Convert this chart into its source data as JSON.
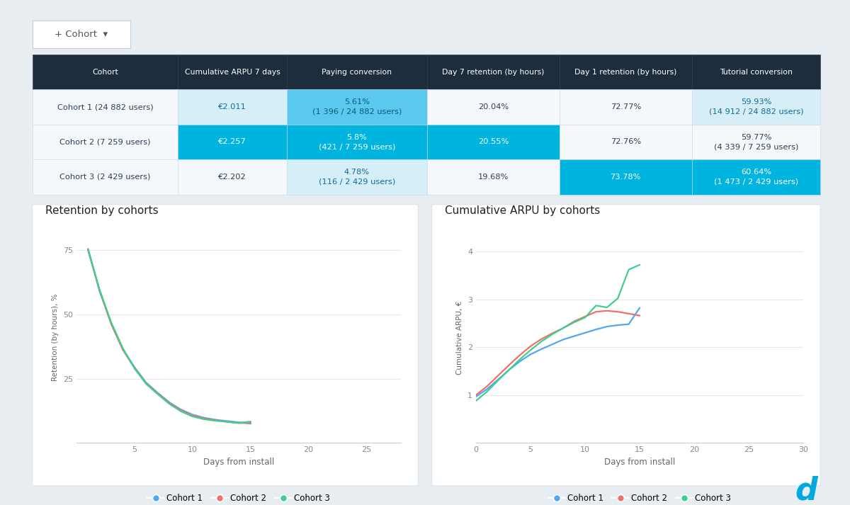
{
  "bg_color": "#e8edf2",
  "panel_color": "#ffffff",
  "header_color": "#1e2d3d",
  "header_text_color": "#ffffff",
  "table_headers": [
    "Cohort",
    "Cumulative ARPU 7 days",
    "Paying conversion",
    "Day 7 retention (by hours)",
    "Day 1 retention (by hours)",
    "Tutorial conversion"
  ],
  "rows": [
    {
      "cohort": "Cohort 1 (24 882 users)",
      "arpu": "€2.011",
      "paying": "5.61%\n(1 396 / 24 882 users)",
      "day7ret": "20.04%",
      "day1ret": "72.77%",
      "tutorial": "59.93%\n(14 912 / 24 882 users)",
      "cell_colors": [
        "#f5f8fa",
        "#d6eef8",
        "#5bc8ef",
        "#f5f8fa",
        "#f5f8fa",
        "#d6eef8"
      ]
    },
    {
      "cohort": "Cohort 2 (7 259 users)",
      "arpu": "€2.257",
      "paying": "5.8%\n(421 / 7 259 users)",
      "day7ret": "20.55%",
      "day1ret": "72.76%",
      "tutorial": "59.77%\n(4 339 / 7 259 users)",
      "cell_colors": [
        "#f5f8fa",
        "#00b4e0",
        "#00b4e0",
        "#00b4e0",
        "#f5f8fa",
        "#f5f8fa"
      ]
    },
    {
      "cohort": "Cohort 3 (2 429 users)",
      "arpu": "€2.202",
      "paying": "4.78%\n(116 / 2 429 users)",
      "day7ret": "19.68%",
      "day1ret": "73.78%",
      "tutorial": "60.64%\n(1 473 / 2 429 users)",
      "cell_colors": [
        "#f5f8fa",
        "#f5f8fa",
        "#d6eef8",
        "#f5f8fa",
        "#00b4e0",
        "#00b4e0"
      ]
    }
  ],
  "retention_title": "Retention by cohorts",
  "arpu_title": "Cumulative ARPU by cohorts",
  "cohort1_color": "#4da8f5",
  "cohort2_color": "#f0706a",
  "cohort3_color": "#3ecf8e",
  "retention_days": [
    1,
    2,
    3,
    4,
    5,
    6,
    7,
    8,
    9,
    10,
    11,
    12,
    13,
    14,
    15
  ],
  "retention_c1": [
    75.5,
    59.0,
    46.5,
    36.5,
    29.5,
    23.5,
    19.5,
    15.8,
    13.0,
    11.0,
    9.8,
    9.0,
    8.5,
    8.0,
    7.5
  ],
  "retention_c2": [
    75.2,
    59.2,
    46.2,
    36.2,
    29.2,
    23.2,
    19.2,
    15.5,
    12.7,
    10.7,
    9.5,
    8.8,
    8.2,
    7.7,
    7.8
  ],
  "retention_c3": [
    75.0,
    59.5,
    46.8,
    36.8,
    29.0,
    23.0,
    19.0,
    15.2,
    12.3,
    10.3,
    9.2,
    8.6,
    8.2,
    7.8,
    8.3
  ],
  "arpu_days": [
    0,
    1,
    2,
    3,
    4,
    5,
    6,
    7,
    8,
    9,
    10,
    11,
    12,
    13,
    14,
    15
  ],
  "arpu_c1": [
    0.97,
    1.12,
    1.32,
    1.52,
    1.7,
    1.85,
    1.96,
    2.06,
    2.16,
    2.23,
    2.3,
    2.37,
    2.43,
    2.46,
    2.48,
    2.82
  ],
  "arpu_c2": [
    1.0,
    1.18,
    1.4,
    1.62,
    1.83,
    2.02,
    2.17,
    2.29,
    2.4,
    2.54,
    2.64,
    2.74,
    2.76,
    2.74,
    2.7,
    2.66
  ],
  "arpu_c3": [
    0.88,
    1.07,
    1.3,
    1.52,
    1.74,
    1.94,
    2.12,
    2.27,
    2.4,
    2.52,
    2.62,
    2.87,
    2.83,
    3.02,
    3.62,
    3.72
  ]
}
